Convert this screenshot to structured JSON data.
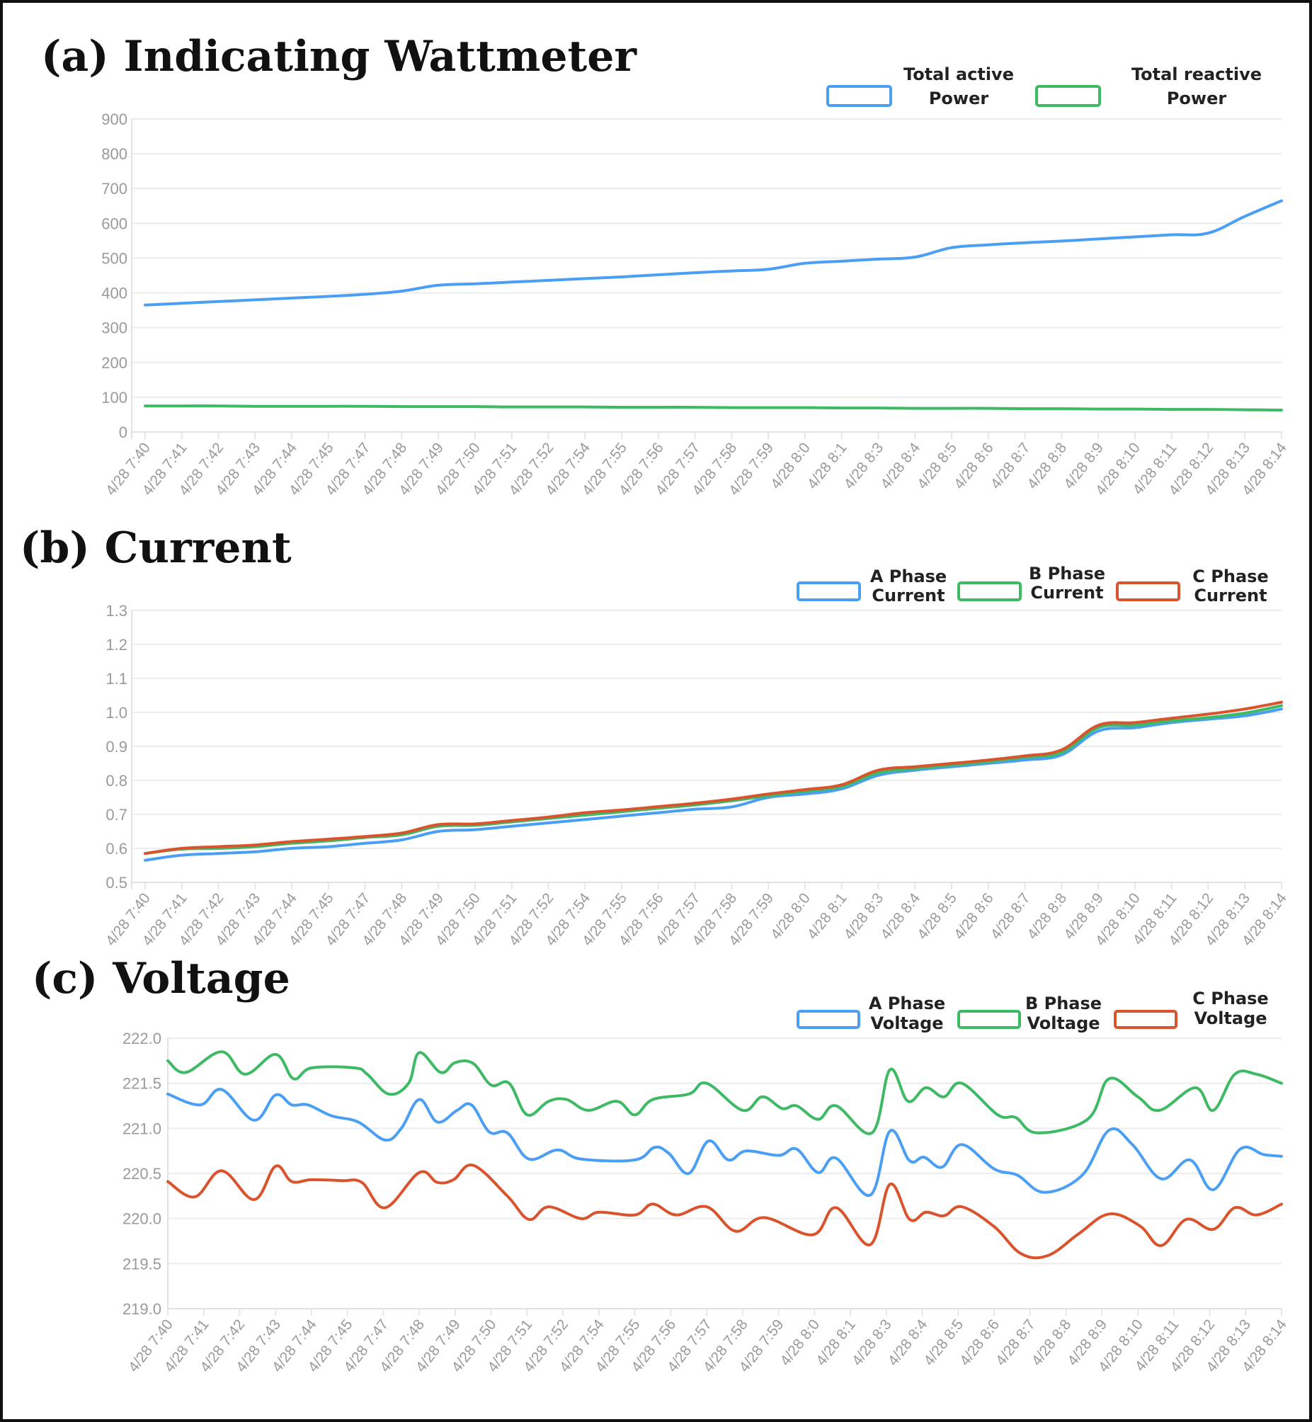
{
  "chart_data": [
    {
      "id": "a",
      "type": "line",
      "title": "(a) Indicating Wattmeter",
      "xlabel": "",
      "ylabel": "",
      "ylim": [
        0,
        900
      ],
      "yticks": [
        "0",
        "100",
        "200",
        "300",
        "400",
        "500",
        "600",
        "700",
        "800",
        "900"
      ],
      "grid": true,
      "legend_position": "top-right",
      "categories": [
        "4/28 7:40",
        "4/28 7:41",
        "4/28 7:42",
        "4/28 7:43",
        "4/28 7:44",
        "4/28 7:45",
        "4/28 7:47",
        "4/28 7:48",
        "4/28 7:49",
        "4/28 7:50",
        "4/28 7:51",
        "4/28 7:52",
        "4/28 7:54",
        "4/28 7:55",
        "4/28 7:56",
        "4/28 7:57",
        "4/28 7:58",
        "4/28 7:59",
        "4/28 8:0",
        "4/28 8:1",
        "4/28 8:3",
        "4/28 8:4",
        "4/28 8:5",
        "4/28 8:6",
        "4/28 8:7",
        "4/28 8:8",
        "4/28 8:9",
        "4/28 8:10",
        "4/28 8:11",
        "4/28 8:12",
        "4/28 8:13",
        "4/28 8:14"
      ],
      "series": [
        {
          "legend_lines": [
            "Total active",
            "Power"
          ],
          "color": "#4a9ff5",
          "values": [
            365,
            370,
            375,
            380,
            385,
            390,
            396,
            405,
            422,
            426,
            431,
            436,
            441,
            446,
            452,
            458,
            463,
            468,
            485,
            491,
            497,
            503,
            530,
            538,
            544,
            549,
            555,
            561,
            567,
            572,
            620,
            665
          ]
        },
        {
          "legend_lines": [
            "Total reactive",
            "Power"
          ],
          "color": "#3dba63",
          "values": [
            75,
            75,
            75,
            74,
            74,
            74,
            74,
            73,
            73,
            73,
            72,
            72,
            72,
            71,
            71,
            71,
            70,
            70,
            70,
            69,
            69,
            68,
            68,
            68,
            67,
            67,
            66,
            66,
            65,
            65,
            64,
            63
          ]
        }
      ]
    },
    {
      "id": "b",
      "type": "line",
      "title": "(b) Current",
      "xlabel": "",
      "ylabel": "",
      "ylim": [
        0.5,
        1.3
      ],
      "yticks": [
        "0.5",
        "0.6",
        "0.7",
        "0.8",
        "0.9",
        "1.0",
        "1.1",
        "1.2",
        "1.3"
      ],
      "grid": true,
      "legend_position": "top-right",
      "categories": [
        "4/28 7:40",
        "4/28 7:41",
        "4/28 7:42",
        "4/28 7:43",
        "4/28 7:44",
        "4/28 7:45",
        "4/28 7:47",
        "4/28 7:48",
        "4/28 7:49",
        "4/28 7:50",
        "4/28 7:51",
        "4/28 7:52",
        "4/28 7:54",
        "4/28 7:55",
        "4/28 7:56",
        "4/28 7:57",
        "4/28 7:58",
        "4/28 7:59",
        "4/28 8:0",
        "4/28 8:1",
        "4/28 8:3",
        "4/28 8:4",
        "4/28 8:5",
        "4/28 8:6",
        "4/28 8:7",
        "4/28 8:8",
        "4/28 8:9",
        "4/28 8:10",
        "4/28 8:11",
        "4/28 8:12",
        "4/28 8:13",
        "4/28 8:14"
      ],
      "series": [
        {
          "legend_lines": [
            "A Phase",
            "Current"
          ],
          "color": "#4a9ff5",
          "values": [
            0.565,
            0.58,
            0.585,
            0.59,
            0.6,
            0.605,
            0.615,
            0.625,
            0.65,
            0.655,
            0.665,
            0.675,
            0.685,
            0.695,
            0.705,
            0.715,
            0.722,
            0.75,
            0.76,
            0.775,
            0.815,
            0.83,
            0.84,
            0.85,
            0.86,
            0.875,
            0.945,
            0.955,
            0.97,
            0.98,
            0.99,
            1.01
          ]
        },
        {
          "legend_lines": [
            "B Phase",
            "Current"
          ],
          "color": "#3dba63",
          "values": [
            0.585,
            0.598,
            0.6,
            0.605,
            0.615,
            0.622,
            0.632,
            0.64,
            0.665,
            0.668,
            0.678,
            0.688,
            0.698,
            0.708,
            0.718,
            0.728,
            0.74,
            0.755,
            0.768,
            0.782,
            0.822,
            0.835,
            0.845,
            0.855,
            0.868,
            0.882,
            0.955,
            0.962,
            0.975,
            0.985,
            0.998,
            1.02
          ]
        },
        {
          "legend_lines": [
            "C Phase",
            "Current"
          ],
          "color": "#d9532c",
          "values": [
            0.585,
            0.6,
            0.605,
            0.61,
            0.62,
            0.627,
            0.635,
            0.645,
            0.67,
            0.672,
            0.682,
            0.692,
            0.705,
            0.713,
            0.723,
            0.733,
            0.745,
            0.76,
            0.773,
            0.787,
            0.83,
            0.84,
            0.85,
            0.86,
            0.872,
            0.89,
            0.962,
            0.97,
            0.983,
            0.995,
            1.01,
            1.03
          ]
        }
      ]
    },
    {
      "id": "c",
      "type": "line",
      "title": "(c) Voltage",
      "xlabel": "",
      "ylabel": "",
      "ylim": [
        219.0,
        222.0
      ],
      "yticks": [
        "219.0",
        "219.5",
        "220.0",
        "220.5",
        "221.0",
        "221.5",
        "222.0"
      ],
      "grid": true,
      "legend_position": "top-right",
      "categories": [
        "4/28 7:40",
        "4/28 7:41",
        "4/28 7:42",
        "4/28 7:43",
        "4/28 7:44",
        "4/28 7:45",
        "4/28 7:47",
        "4/28 7:48",
        "4/28 7:49",
        "4/28 7:50",
        "4/28 7:51",
        "4/28 7:52",
        "4/28 7:54",
        "4/28 7:55",
        "4/28 7:56",
        "4/28 7:57",
        "4/28 7:58",
        "4/28 7:59",
        "4/28 8:0",
        "4/28 8:1",
        "4/28 8:3",
        "4/28 8:4",
        "4/28 8:5",
        "4/28 8:6",
        "4/28 8:7",
        "4/28 8:8",
        "4/28 8:9",
        "4/28 8:10",
        "4/28 8:11",
        "4/28 8:12",
        "4/28 8:13",
        "4/28 8:14"
      ],
      "series": [
        {
          "legend_lines": [
            "A Phase",
            "Voltage"
          ],
          "color": "#4a9ff5",
          "points": [
            [
              0,
              221.38
            ],
            [
              0.9,
              221.26
            ],
            [
              1.5,
              221.43
            ],
            [
              2.4,
              221.09
            ],
            [
              3.0,
              221.37
            ],
            [
              3.45,
              221.26
            ],
            [
              3.9,
              221.26
            ],
            [
              4.55,
              221.14
            ],
            [
              5.3,
              221.07
            ],
            [
              6.05,
              220.87
            ],
            [
              6.5,
              221.0
            ],
            [
              7.0,
              221.32
            ],
            [
              7.5,
              221.07
            ],
            [
              8.05,
              221.2
            ],
            [
              8.45,
              221.26
            ],
            [
              8.95,
              220.96
            ],
            [
              9.45,
              220.95
            ],
            [
              10.05,
              220.66
            ],
            [
              10.85,
              220.76
            ],
            [
              11.5,
              220.66
            ],
            [
              13.0,
              220.65
            ],
            [
              13.55,
              220.79
            ],
            [
              13.95,
              220.72
            ],
            [
              14.5,
              220.5
            ],
            [
              15.05,
              220.86
            ],
            [
              15.6,
              220.65
            ],
            [
              16.1,
              220.75
            ],
            [
              17.0,
              220.7
            ],
            [
              17.5,
              220.77
            ],
            [
              18.1,
              220.51
            ],
            [
              18.6,
              220.67
            ],
            [
              19.55,
              220.26
            ],
            [
              20.1,
              220.97
            ],
            [
              20.65,
              220.64
            ],
            [
              21.05,
              220.68
            ],
            [
              21.55,
              220.57
            ],
            [
              22.1,
              220.82
            ],
            [
              23.0,
              220.55
            ],
            [
              23.65,
              220.48
            ],
            [
              24.4,
              220.29
            ],
            [
              25.45,
              220.48
            ],
            [
              26.2,
              220.98
            ],
            [
              26.85,
              220.82
            ],
            [
              27.65,
              220.44
            ],
            [
              28.45,
              220.65
            ],
            [
              29.1,
              220.32
            ],
            [
              29.85,
              220.77
            ],
            [
              30.5,
              220.71
            ],
            [
              31,
              220.69
            ]
          ]
        },
        {
          "legend_lines": [
            "B Phase",
            "Voltage"
          ],
          "color": "#3dba63",
          "points": [
            [
              0,
              221.75
            ],
            [
              0.5,
              221.62
            ],
            [
              1.5,
              221.85
            ],
            [
              2.15,
              221.6
            ],
            [
              3.0,
              221.82
            ],
            [
              3.5,
              221.55
            ],
            [
              4.0,
              221.67
            ],
            [
              5.2,
              221.67
            ],
            [
              5.55,
              221.6
            ],
            [
              6.15,
              221.38
            ],
            [
              6.7,
              221.5
            ],
            [
              7.0,
              221.84
            ],
            [
              7.6,
              221.62
            ],
            [
              8.0,
              221.73
            ],
            [
              8.5,
              221.72
            ],
            [
              9.0,
              221.48
            ],
            [
              9.5,
              221.5
            ],
            [
              10.0,
              221.15
            ],
            [
              10.6,
              221.3
            ],
            [
              11.1,
              221.32
            ],
            [
              11.7,
              221.2
            ],
            [
              12.5,
              221.3
            ],
            [
              13.0,
              221.15
            ],
            [
              13.5,
              221.32
            ],
            [
              14.5,
              221.38
            ],
            [
              15.0,
              221.5
            ],
            [
              16.0,
              221.2
            ],
            [
              16.55,
              221.35
            ],
            [
              17.1,
              221.22
            ],
            [
              17.5,
              221.25
            ],
            [
              18.1,
              221.1
            ],
            [
              18.6,
              221.25
            ],
            [
              19.6,
              220.95
            ],
            [
              20.1,
              221.65
            ],
            [
              20.6,
              221.3
            ],
            [
              21.1,
              221.45
            ],
            [
              21.6,
              221.35
            ],
            [
              22.1,
              221.5
            ],
            [
              23.1,
              221.15
            ],
            [
              23.6,
              221.12
            ],
            [
              24.2,
              220.95
            ],
            [
              25.6,
              221.1
            ],
            [
              26.2,
              221.55
            ],
            [
              27.0,
              221.35
            ],
            [
              27.6,
              221.2
            ],
            [
              28.6,
              221.45
            ],
            [
              29.1,
              221.2
            ],
            [
              29.7,
              221.6
            ],
            [
              30.3,
              221.6
            ],
            [
              31,
              221.5
            ]
          ]
        },
        {
          "legend_lines": [
            "C Phase",
            "Voltage"
          ],
          "color": "#d9532c",
          "points": [
            [
              0,
              220.41
            ],
            [
              0.75,
              220.24
            ],
            [
              1.5,
              220.53
            ],
            [
              2.4,
              220.21
            ],
            [
              3.0,
              220.58
            ],
            [
              3.45,
              220.41
            ],
            [
              4.0,
              220.43
            ],
            [
              4.85,
              220.42
            ],
            [
              5.4,
              220.4
            ],
            [
              6.05,
              220.12
            ],
            [
              7.0,
              220.51
            ],
            [
              7.5,
              220.4
            ],
            [
              7.95,
              220.43
            ],
            [
              8.5,
              220.59
            ],
            [
              9.45,
              220.25
            ],
            [
              10.05,
              219.99
            ],
            [
              10.6,
              220.13
            ],
            [
              11.5,
              220.0
            ],
            [
              12.0,
              220.07
            ],
            [
              13.0,
              220.04
            ],
            [
              13.5,
              220.16
            ],
            [
              14.15,
              220.04
            ],
            [
              15.0,
              220.13
            ],
            [
              15.8,
              219.86
            ],
            [
              16.6,
              220.01
            ],
            [
              17.95,
              219.82
            ],
            [
              18.6,
              220.12
            ],
            [
              19.55,
              219.71
            ],
            [
              20.1,
              220.38
            ],
            [
              20.65,
              219.99
            ],
            [
              21.1,
              220.07
            ],
            [
              21.6,
              220.03
            ],
            [
              22.1,
              220.13
            ],
            [
              23.0,
              219.91
            ],
            [
              23.75,
              219.61
            ],
            [
              24.5,
              219.59
            ],
            [
              25.35,
              219.83
            ],
            [
              26.2,
              220.05
            ],
            [
              27.05,
              219.92
            ],
            [
              27.65,
              219.7
            ],
            [
              28.35,
              219.99
            ],
            [
              29.1,
              219.88
            ],
            [
              29.7,
              220.12
            ],
            [
              30.3,
              220.04
            ],
            [
              31,
              220.16
            ]
          ]
        }
      ]
    }
  ]
}
